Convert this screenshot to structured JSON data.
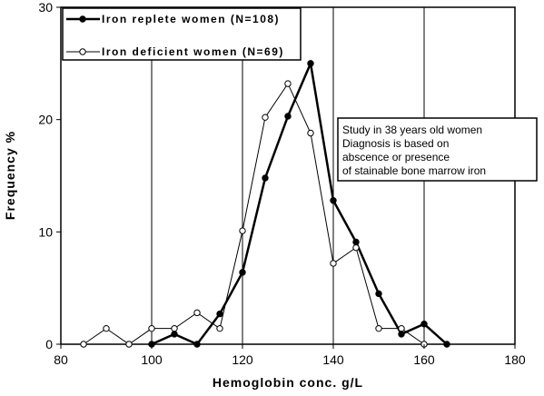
{
  "chart_data": {
    "type": "line",
    "xlabel": "Hemoglobin conc. g/L",
    "ylabel": "Frequency %",
    "xlim": [
      80,
      180
    ],
    "ylim": [
      0,
      30
    ],
    "x_ticks": [
      "80",
      "100",
      "120",
      "140",
      "160",
      "180"
    ],
    "y_ticks": [
      "0",
      "10",
      "20",
      "30"
    ],
    "grid": "vertical lines at x = 100, 120, 140, 160",
    "legend_position": "top-left",
    "series": [
      {
        "name": "Iron replete women (N=108)",
        "marker": "filled-circle",
        "color": "#000000",
        "points": [
          [
            100,
            0.0
          ],
          [
            105,
            0.9
          ],
          [
            110,
            0.0
          ],
          [
            115,
            2.7
          ],
          [
            120,
            6.4
          ],
          [
            125,
            14.8
          ],
          [
            130,
            20.3
          ],
          [
            135,
            25.0
          ],
          [
            140,
            12.8
          ],
          [
            145,
            9.1
          ],
          [
            150,
            4.5
          ],
          [
            155,
            0.9
          ],
          [
            160,
            1.8
          ],
          [
            165,
            0.0
          ]
        ]
      },
      {
        "name": "Iron deficient women (N=69)",
        "marker": "open-circle",
        "color": "#000000",
        "points": [
          [
            85,
            0.0
          ],
          [
            90,
            1.4
          ],
          [
            95,
            0.0
          ],
          [
            100,
            1.4
          ],
          [
            105,
            1.4
          ],
          [
            110,
            2.8
          ],
          [
            115,
            1.4
          ],
          [
            120,
            10.1
          ],
          [
            125,
            20.2
          ],
          [
            130,
            23.2
          ],
          [
            135,
            18.8
          ],
          [
            140,
            7.2
          ],
          [
            145,
            8.6
          ],
          [
            150,
            1.4
          ],
          [
            155,
            1.4
          ],
          [
            160,
            0.0
          ]
        ]
      }
    ],
    "annotation": [
      "Study in 38 years old women",
      "Diagnosis is based on",
      "abscence or presence",
      "of stainable bone marrow iron"
    ]
  }
}
